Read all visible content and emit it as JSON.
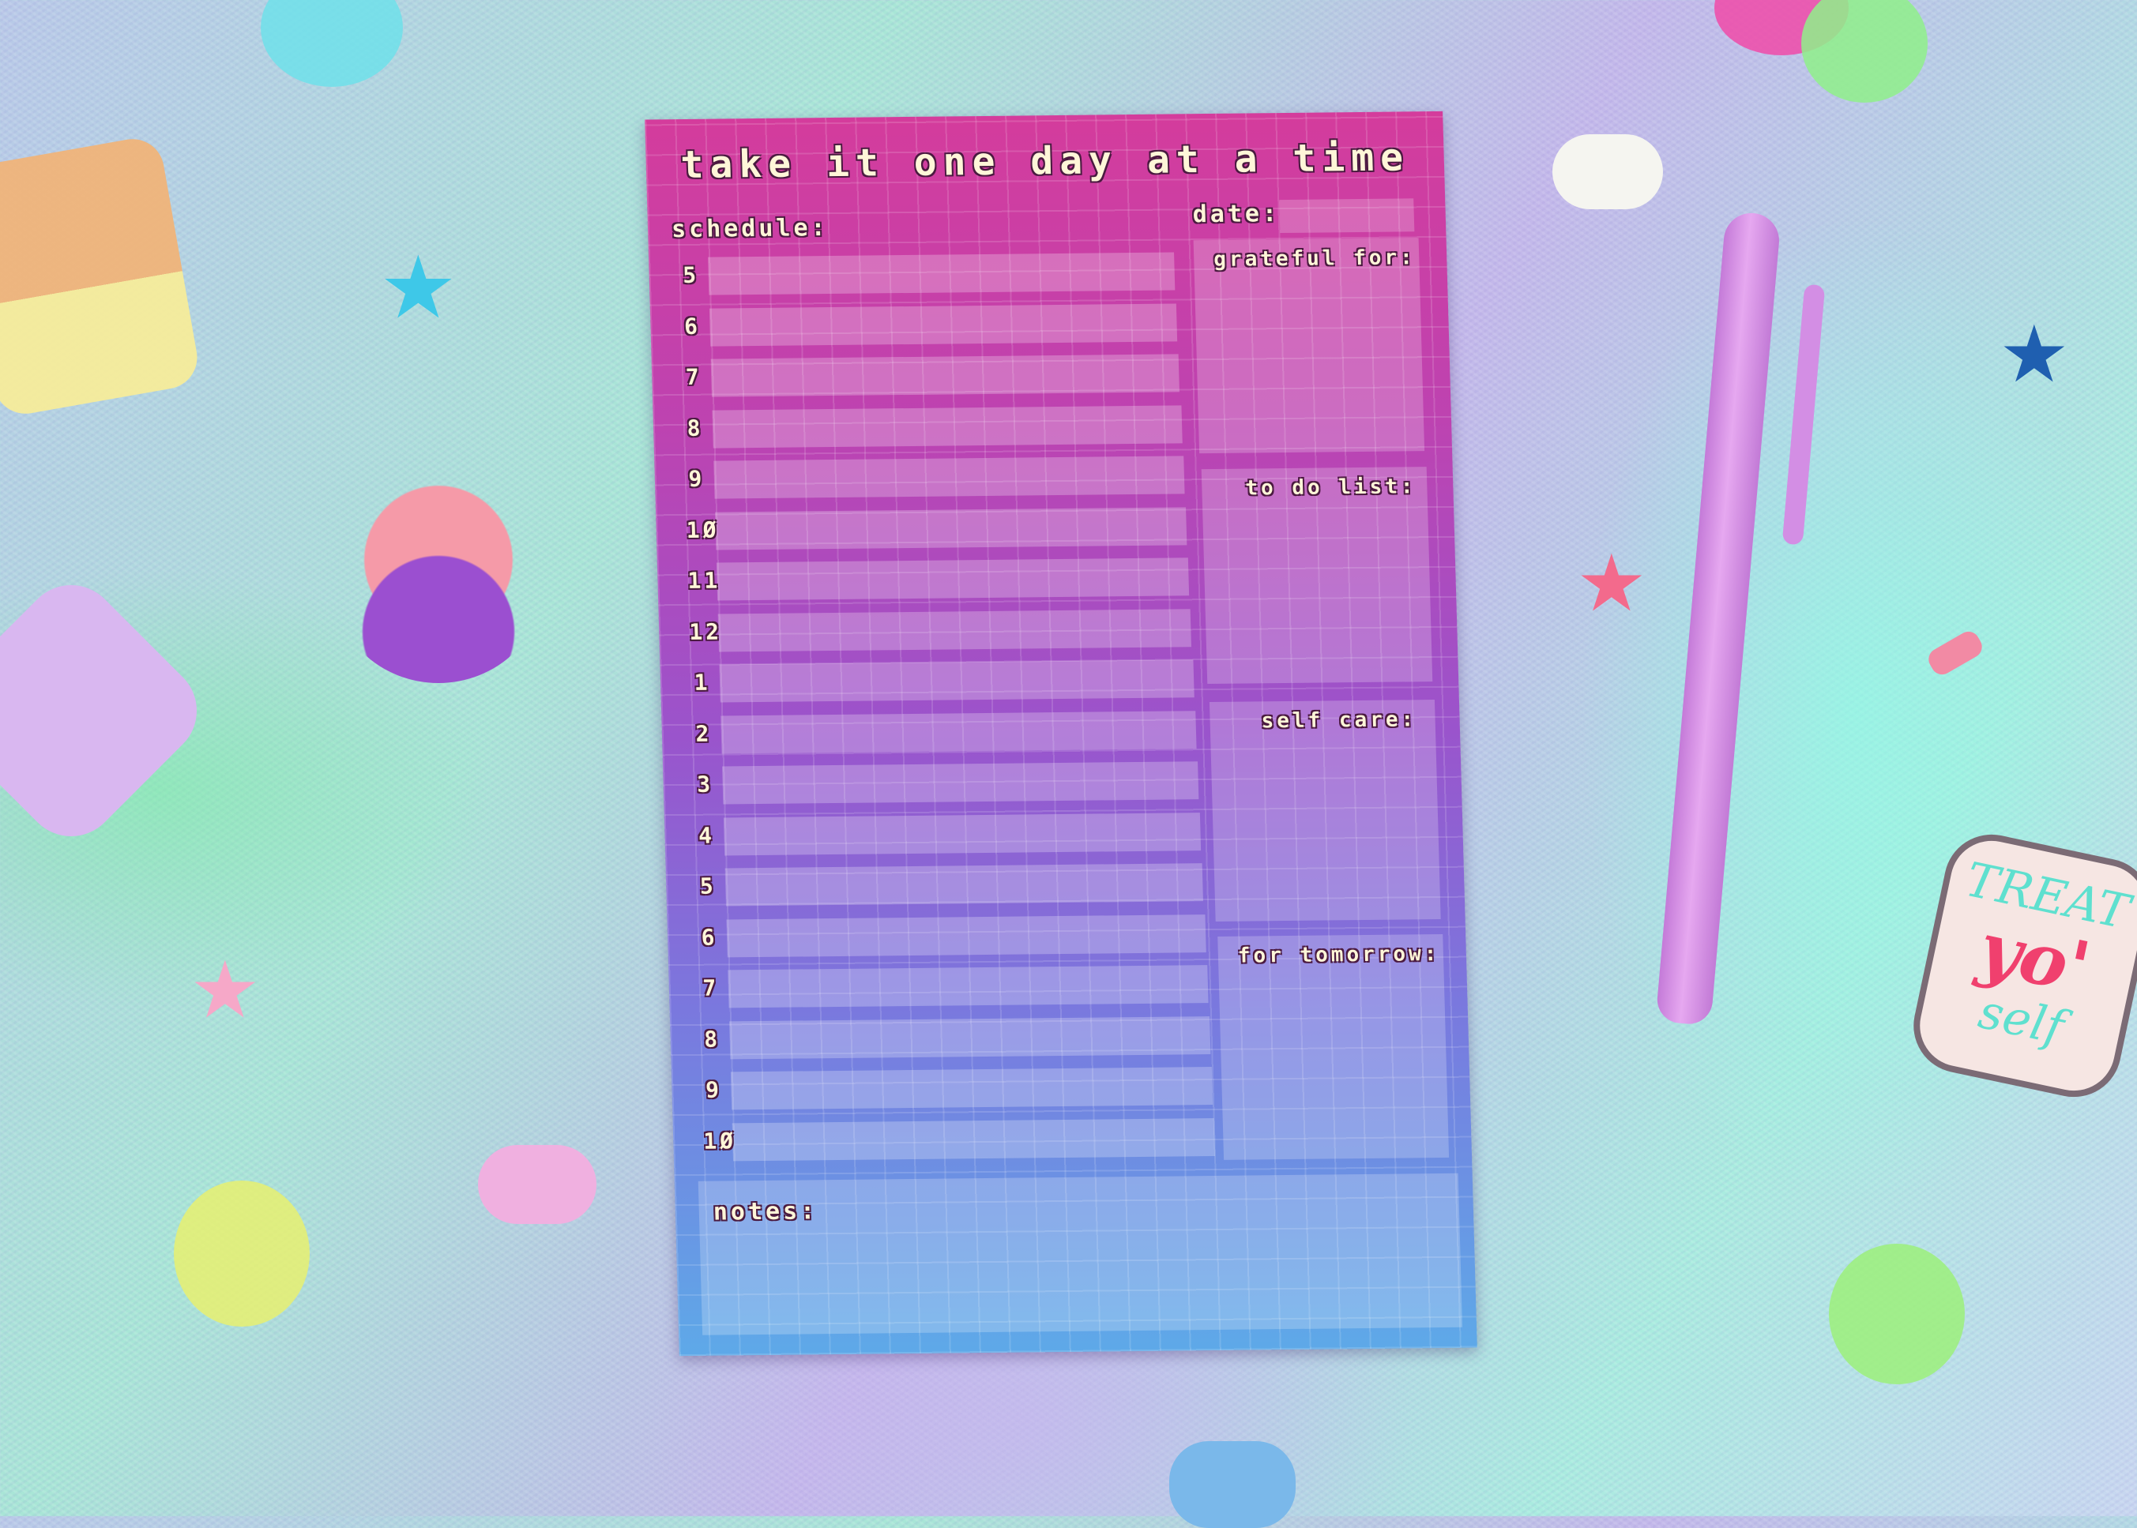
{
  "notepad": {
    "title": "take it one day at a time",
    "schedule_label": "schedule:",
    "date_label": "date:",
    "hours": [
      "5",
      "6",
      "7",
      "8",
      "9",
      "1Ø",
      "11",
      "12",
      "1",
      "2",
      "3",
      "4",
      "5",
      "6",
      "7",
      "8",
      "9",
      "1Ø"
    ],
    "sections": [
      {
        "label": "grateful for:"
      },
      {
        "label": "to do list:"
      },
      {
        "label": "self care:"
      },
      {
        "label": "for tomorrow:"
      }
    ],
    "notes_label": "notes:",
    "colors": {
      "top": "#d43c9c",
      "middle": "#9a54cc",
      "bottom": "#5ea9e8"
    }
  },
  "sticker": {
    "line1": "TREAT",
    "line2": "yo'",
    "line3": "self"
  }
}
